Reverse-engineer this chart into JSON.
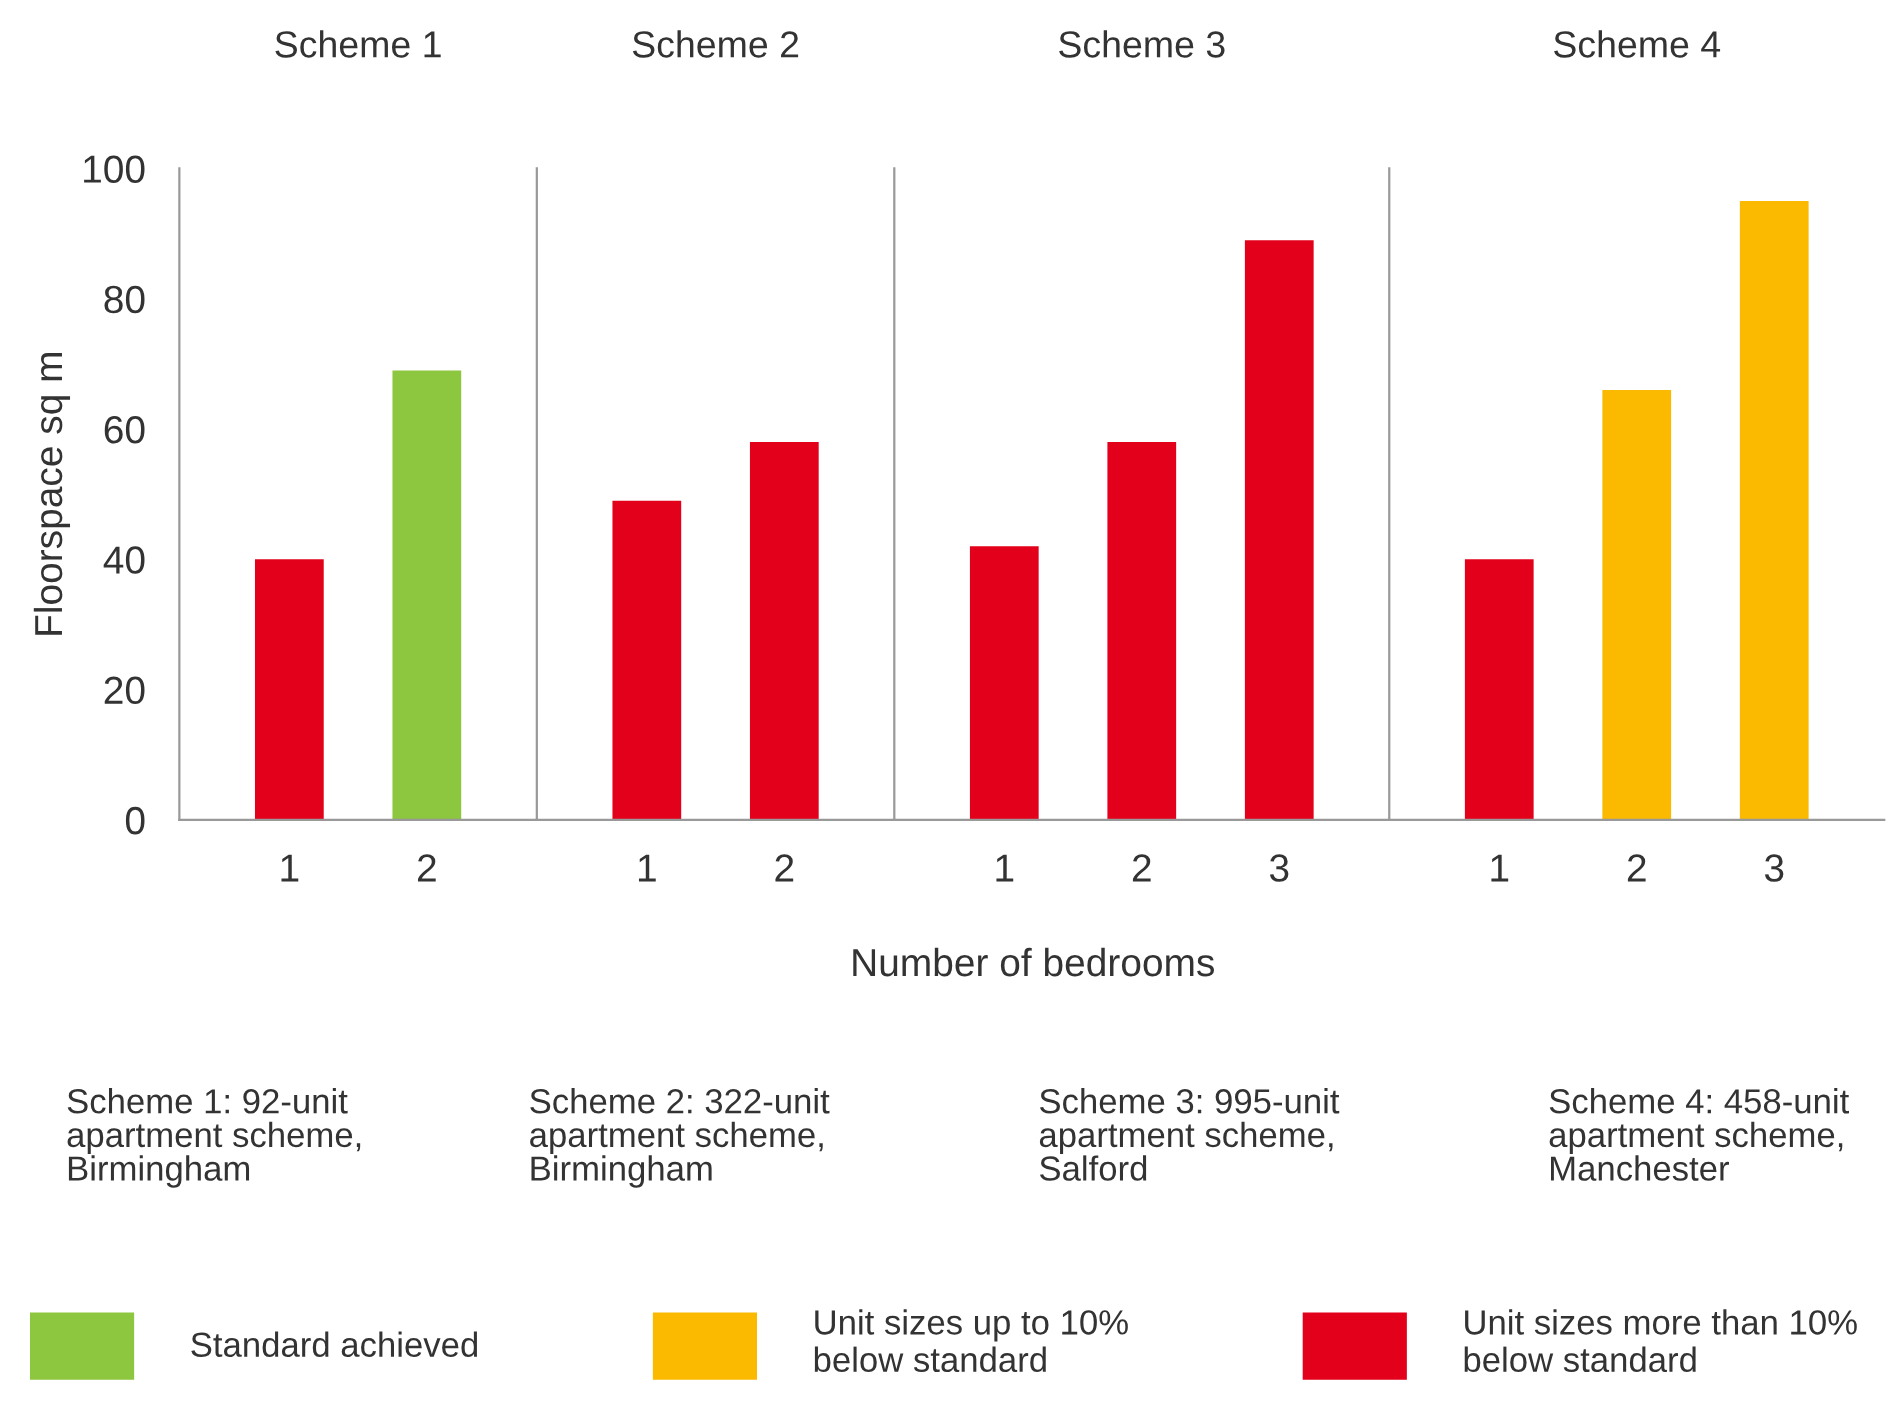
{
  "chart_data": [
    {
      "type": "bar",
      "title": "Scheme 1",
      "categories": [
        "1",
        "2"
      ],
      "ylabel": "Floorspace sq m",
      "ylim": [
        0,
        100
      ],
      "yticks": [
        0,
        20,
        40,
        60,
        80,
        100
      ],
      "grid": false,
      "legend": "bottom",
      "series": [
        {
          "name": "Standard achieved",
          "color": "#8dc63f",
          "values": [
            null,
            69
          ]
        },
        {
          "name": "Unit sizes up to 10%\nbelow standard",
          "color": "#fbba00",
          "values": [
            null,
            null
          ]
        },
        {
          "name": "Unit sizes more than 10%\nbelow standard",
          "color": "#e2001a",
          "values": [
            40,
            null
          ]
        }
      ],
      "annotations": [
        "Scheme 1: 92-unit\napartment scheme,\nBirmingham"
      ]
    },
    {
      "type": "bar",
      "title": "Scheme 2",
      "categories": [
        "1",
        "2"
      ],
      "ylim": [
        0,
        100
      ],
      "tick_labels": "x",
      "grid": false,
      "series": [
        {
          "color": "#e2001a",
          "values": [
            49,
            58
          ]
        }
      ],
      "annotations": [
        "Scheme 2: 322-unit\napartment scheme,\nBirmingham"
      ]
    },
    {
      "type": "bar",
      "title": "Scheme 3",
      "categories": [
        "1",
        "2",
        "3"
      ],
      "xlabel": "Number of bedrooms",
      "ylim": [
        0,
        100
      ],
      "tick_labels": "x",
      "grid": false,
      "series": [
        {
          "color": "#e2001a",
          "values": [
            42,
            58,
            89
          ]
        }
      ],
      "annotations": [
        "Scheme 3: 995-unit\napartment scheme,\nSalford"
      ]
    },
    {
      "type": "bar",
      "title": "Scheme 4",
      "categories": [
        "1",
        "2",
        "3"
      ],
      "ylim": [
        0,
        100
      ],
      "tick_labels": "x",
      "grid": false,
      "series": [
        {
          "color": "#fbba00",
          "values": [
            null,
            66,
            95
          ]
        },
        {
          "color": "#e2001a",
          "values": [
            40,
            null,
            null
          ]
        }
      ],
      "annotations": [
        "Scheme 4: 458-unit\napartment scheme,\nManchester"
      ]
    }
  ]
}
